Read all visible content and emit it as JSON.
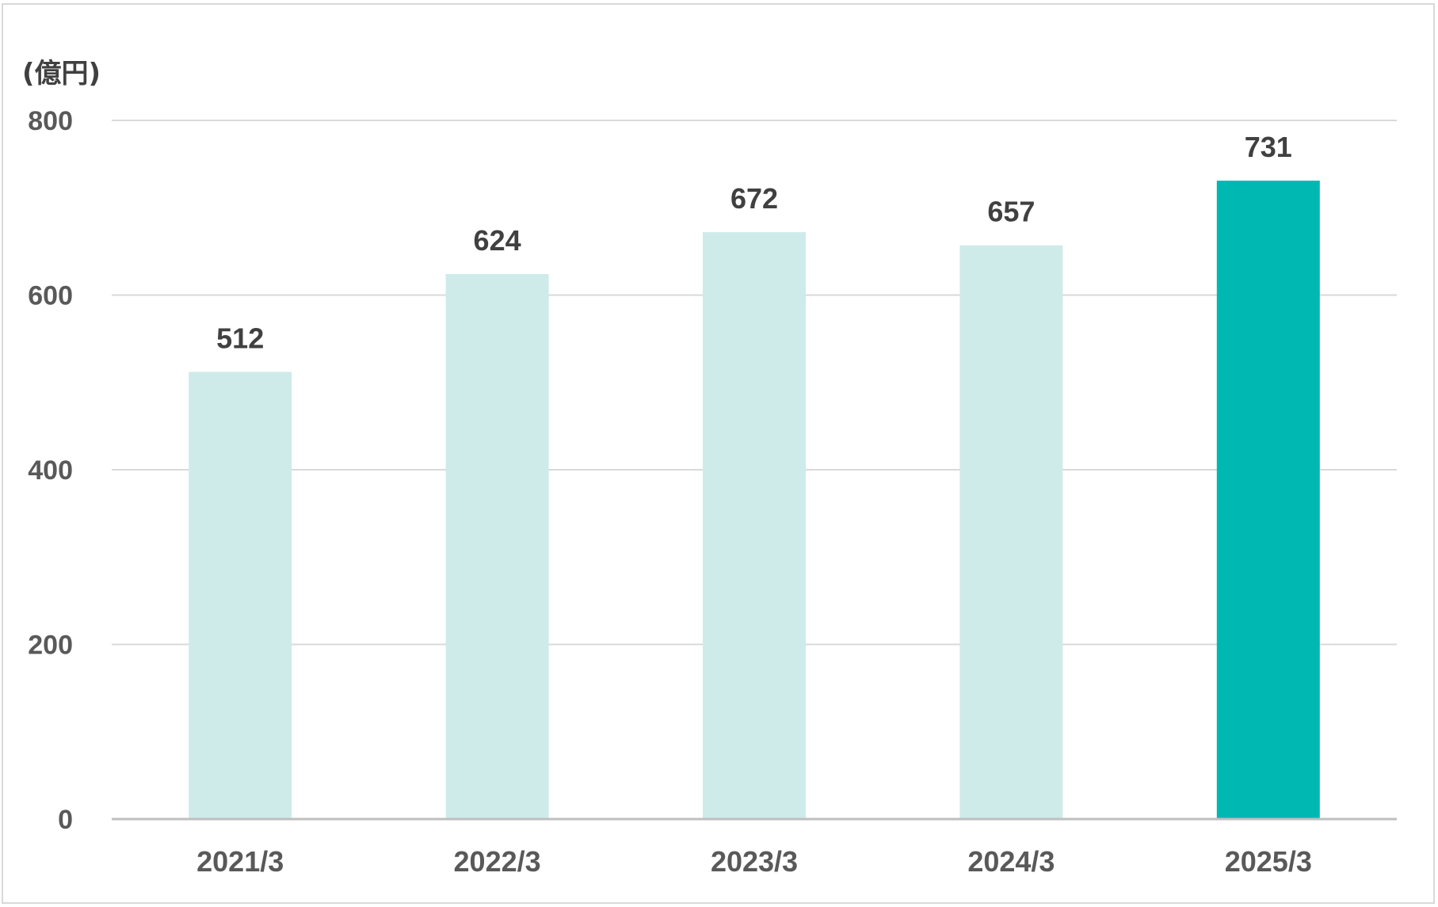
{
  "chart_data": {
    "type": "bar",
    "unit_label": "(億円)",
    "categories": [
      "2021/3",
      "2022/3",
      "2023/3",
      "2024/3",
      "2025/3"
    ],
    "values": [
      512,
      624,
      672,
      657,
      731
    ],
    "data_labels": [
      "512",
      "624",
      "672",
      "657",
      "731"
    ],
    "ylim": [
      0,
      800
    ],
    "yticks": [
      0,
      200,
      400,
      600,
      800
    ],
    "ytick_labels": [
      "0",
      "200",
      "400",
      "600",
      "800"
    ],
    "grid": true,
    "legend": "none",
    "colors": {
      "bar": "#ceebea",
      "highlight_bar": "#00b8b2",
      "grid": "#d9d9d9",
      "axis": "#bfbfbf"
    },
    "highlight_index": 4
  }
}
